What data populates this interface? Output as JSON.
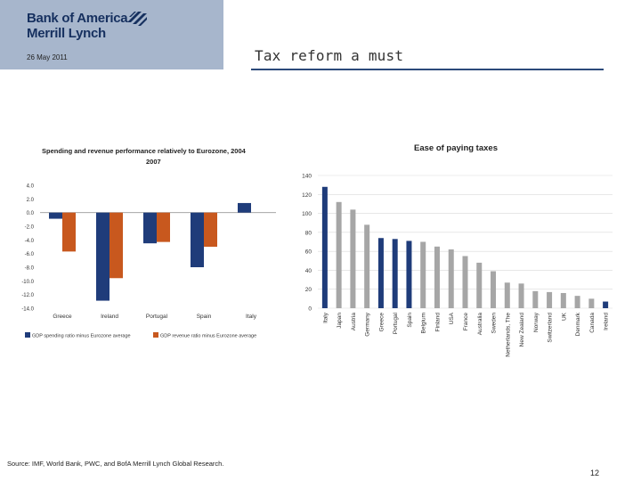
{
  "header": {
    "logo_line1": "Bank of America",
    "logo_line2": "Merrill Lynch",
    "date": "26 May 2011",
    "title": "Tax reform a must"
  },
  "footer": {
    "source": "Source: IMF, World Bank, PWC, and BofA Merrill Lynch Global Research.",
    "page_number": "12"
  },
  "colors": {
    "navy": "#1f3c7a",
    "orange": "#c8581e",
    "grey": "#a6a6a6",
    "header_bg": "#a7b6cc"
  },
  "chart_data": [
    {
      "type": "bar",
      "title": "Spending and revenue performance relatively to Eurozone, 2004 2007",
      "title_lines": [
        "Spending and revenue performance relatively to Eurozone, 2004",
        "2007"
      ],
      "categories": [
        "Greece",
        "Ireland",
        "Portugal",
        "Spain",
        "Italy"
      ],
      "series": [
        {
          "name": "GDP spending ratio minus Eurozone average",
          "color": "#1f3c7a",
          "values": [
            -0.9,
            -12.9,
            -4.5,
            -8.0,
            1.4
          ]
        },
        {
          "name": "GDP revenue ratio minus Eurozone average",
          "color": "#c8581e",
          "values": [
            -5.7,
            -9.6,
            -4.3,
            -5.0,
            null
          ]
        }
      ],
      "ylim": [
        -14,
        4
      ],
      "yticks": [
        "4.0",
        "2.0",
        "0.0",
        "-2.0",
        "-4.0",
        "-6.0",
        "-8.0",
        "-10.0",
        "-12.0",
        "-14.0"
      ],
      "ytick_values": [
        4,
        2,
        0,
        -2,
        -4,
        -6,
        -8,
        -10,
        -12,
        -14
      ],
      "xlabel": "",
      "ylabel": "",
      "legend_position": "bottom"
    },
    {
      "type": "bar",
      "title": "Ease of paying taxes",
      "categories": [
        "Italy",
        "Japan",
        "Austria",
        "Germany",
        "Greece",
        "Portugal",
        "Spain",
        "Belgium",
        "Finland",
        "USA",
        "France",
        "Australia",
        "Sweden",
        "Netherlands, The",
        "New Zealand",
        "Norway",
        "Switzerland",
        "UK",
        "Denmark",
        "Canada",
        "Ireland"
      ],
      "values": [
        128,
        112,
        104,
        88,
        74,
        73,
        71,
        70,
        65,
        62,
        55,
        48,
        39,
        27,
        26,
        18,
        17,
        16,
        13,
        10,
        7
      ],
      "highlighted": [
        "Italy",
        "Greece",
        "Portugal",
        "Spain",
        "Ireland"
      ],
      "ylim": [
        0,
        140
      ],
      "yticks": [
        "140",
        "120",
        "100",
        "80",
        "60",
        "40",
        "20",
        "0"
      ],
      "ytick_values": [
        140,
        120,
        100,
        80,
        60,
        40,
        20,
        0
      ],
      "xlabel": "",
      "ylabel": ""
    }
  ]
}
